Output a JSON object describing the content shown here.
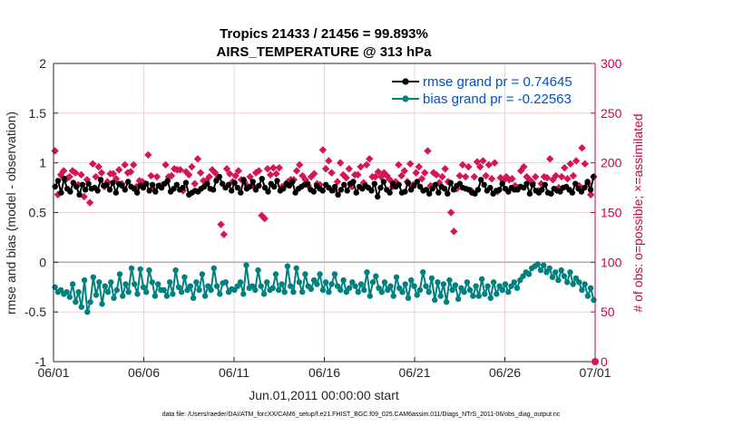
{
  "figure": {
    "title_line1": "Tropics 21433 / 21456 = 99.893%",
    "title_line2": "AIRS_TEMPERATURE @ 313 hPa",
    "footnote": "data file: /Users/raeder/DAI/ATM_forcXX/CAM6_setup/f.e21.FHIST_BGC.f09_025.CAM6assim.011/Diags_NTrS_2011-06/obs_diag_output.nc"
  },
  "colors": {
    "rmse": "#000000",
    "bias": "#00807f",
    "obs": "#d6145a",
    "right_axis": "#cc0052",
    "legend_text": "#0050c8",
    "grid": "#e7c6d6"
  },
  "chart_data": {
    "type": "line",
    "xlabel": "Jun.01,2011 00:00:00 start",
    "ylabel_left": "rmse and bias (model - observation)",
    "ylabel_right": "# of obs: o=possible; ×=assimilated",
    "x_ticks": [
      "06/01",
      "06/06",
      "06/11",
      "06/16",
      "06/21",
      "06/26",
      "07/01"
    ],
    "xlim": [
      0,
      30
    ],
    "ylim_left": [
      -1,
      2
    ],
    "y_ticks_left": [
      "-1",
      "-0.5",
      "0",
      "0.5",
      "1",
      "1.5",
      "2"
    ],
    "ylim_right": [
      0,
      300
    ],
    "y_ticks_right": [
      "0",
      "50",
      "100",
      "150",
      "200",
      "250",
      "300"
    ],
    "legend": [
      {
        "name": "rmse grand pr = 0.74645"
      },
      {
        "name": "bias grand pr = -0.22563"
      }
    ],
    "rmse": [
      0.76,
      0.82,
      0.7,
      0.84,
      0.74,
      0.71,
      0.8,
      0.76,
      0.68,
      0.78,
      0.73,
      0.79,
      0.74,
      0.75,
      0.72,
      0.83,
      0.77,
      0.78,
      0.73,
      0.8,
      0.7,
      0.79,
      0.77,
      0.73,
      0.81,
      0.76,
      0.74,
      0.7,
      0.77,
      0.75,
      0.79,
      0.72,
      0.78,
      0.71,
      0.77,
      0.75,
      0.79,
      0.82,
      0.71,
      0.74,
      0.78,
      0.73,
      0.75,
      0.8,
      0.68,
      0.7,
      0.72,
      0.71,
      0.74,
      0.76,
      0.79,
      0.74,
      0.73,
      0.82,
      0.86,
      0.79,
      0.75,
      0.78,
      0.72,
      0.8,
      0.75,
      0.7,
      0.83,
      0.74,
      0.76,
      0.81,
      0.73,
      0.77,
      0.84,
      0.75,
      0.71,
      0.79,
      0.76,
      0.82,
      0.72,
      0.74,
      0.79,
      0.77,
      0.81,
      0.7,
      0.74,
      0.76,
      0.78,
      0.79,
      0.73,
      0.71,
      0.77,
      0.74,
      0.72,
      0.78,
      0.75,
      0.72,
      0.76,
      0.68,
      0.73,
      0.78,
      0.72,
      0.79,
      0.81,
      0.7,
      0.76,
      0.74,
      0.77,
      0.75,
      0.72,
      0.79,
      0.66,
      0.75,
      0.81,
      0.73,
      0.7,
      0.79,
      0.76,
      0.78,
      0.7,
      0.71,
      0.8,
      0.73,
      0.77,
      0.81,
      0.76,
      0.72,
      0.73,
      0.69,
      0.74,
      0.78,
      0.7,
      0.76,
      0.74,
      0.69,
      0.8,
      0.73,
      0.77,
      0.79,
      0.75,
      0.74,
      0.73,
      0.7,
      0.69,
      0.73,
      0.83,
      0.78,
      0.72,
      0.75,
      0.69,
      0.72,
      0.73,
      0.79,
      0.74,
      0.71,
      0.75,
      0.73,
      0.73,
      0.76,
      0.75,
      0.79,
      0.69,
      0.78,
      0.72,
      0.7,
      0.73,
      0.78,
      0.7,
      0.69,
      0.74,
      0.72,
      0.71,
      0.75,
      0.76,
      0.73,
      0.7,
      0.79,
      0.74,
      0.71,
      0.75,
      0.81,
      0.73,
      0.86
    ],
    "bias": [
      -0.25,
      -0.3,
      -0.28,
      -0.32,
      -0.3,
      -0.35,
      -0.22,
      -0.4,
      -0.3,
      -0.45,
      -0.18,
      -0.5,
      -0.4,
      -0.15,
      -0.33,
      -0.2,
      -0.42,
      -0.24,
      -0.3,
      -0.2,
      -0.36,
      -0.28,
      -0.12,
      -0.34,
      -0.22,
      -0.3,
      -0.06,
      -0.22,
      -0.32,
      -0.07,
      -0.25,
      -0.3,
      -0.08,
      -0.2,
      -0.34,
      -0.22,
      -0.28,
      -0.28,
      -0.34,
      -0.2,
      -0.32,
      -0.08,
      -0.25,
      -0.3,
      -0.15,
      -0.28,
      -0.24,
      -0.36,
      -0.2,
      -0.28,
      -0.12,
      -0.34,
      -0.24,
      -0.28,
      -0.06,
      -0.24,
      -0.32,
      -0.21,
      -0.2,
      -0.3,
      -0.27,
      -0.28,
      -0.24,
      -0.2,
      -0.32,
      -0.03,
      -0.26,
      -0.24,
      -0.28,
      -0.08,
      -0.24,
      -0.32,
      -0.2,
      -0.28,
      -0.26,
      -0.12,
      -0.28,
      -0.22,
      -0.3,
      -0.04,
      -0.24,
      -0.3,
      -0.06,
      -0.2,
      -0.3,
      -0.12,
      -0.24,
      -0.27,
      -0.18,
      -0.22,
      -0.12,
      -0.28,
      -0.2,
      -0.3,
      -0.22,
      -0.12,
      -0.24,
      -0.28,
      -0.18,
      -0.3,
      -0.26,
      -0.2,
      -0.24,
      -0.3,
      -0.22,
      -0.28,
      -0.1,
      -0.34,
      -0.2,
      -0.14,
      -0.26,
      -0.3,
      -0.2,
      -0.28,
      -0.24,
      -0.34,
      -0.15,
      -0.26,
      -0.3,
      -0.22,
      -0.36,
      -0.18,
      -0.24,
      -0.33,
      -0.28,
      -0.1,
      -0.24,
      -0.3,
      -0.16,
      -0.38,
      -0.2,
      -0.34,
      -0.22,
      -0.4,
      -0.18,
      -0.28,
      -0.23,
      -0.37,
      -0.26,
      -0.3,
      -0.2,
      -0.28,
      -0.34,
      -0.24,
      -0.34,
      -0.17,
      -0.32,
      -0.24,
      -0.36,
      -0.2,
      -0.32,
      -0.24,
      -0.28,
      -0.22,
      -0.3,
      -0.24,
      -0.2,
      -0.26,
      -0.18,
      -0.14,
      -0.1,
      -0.12,
      -0.06,
      -0.04,
      -0.02,
      -0.08,
      -0.03,
      -0.1,
      -0.06,
      -0.15,
      -0.1,
      -0.18,
      -0.08,
      -0.14,
      -0.2,
      -0.1,
      -0.22,
      -0.16,
      -0.2,
      -0.28,
      -0.22,
      -0.34,
      -0.26,
      -0.38
    ],
    "obs_count": [
      212,
      168,
      188,
      192,
      184,
      186,
      192,
      190,
      178,
      188,
      166,
      183,
      160,
      199,
      186,
      196,
      190,
      176,
      181,
      189,
      189,
      184,
      193,
      179,
      198,
      190,
      191,
      198,
      176,
      182,
      181,
      179,
      208,
      187,
      173,
      186,
      177,
      178,
      198,
      186,
      187,
      194,
      193,
      193,
      172,
      191,
      188,
      196,
      179,
      204,
      190,
      182,
      182,
      186,
      193,
      190,
      185,
      138,
      128,
      194,
      189,
      181,
      187,
      192,
      183,
      181,
      177,
      186,
      177,
      190,
      192,
      147,
      144,
      194,
      188,
      195,
      189,
      195,
      176,
      177,
      181,
      183,
      183,
      192,
      198,
      187,
      183,
      177,
      186,
      189,
      179,
      178,
      213,
      194,
      202,
      190,
      173,
      181,
      200,
      188,
      185,
      194,
      176,
      188,
      188,
      196,
      180,
      198,
      204,
      186,
      186,
      191,
      186,
      190,
      187,
      183,
      176,
      181,
      198,
      187,
      192,
      181,
      199,
      178,
      190,
      196,
      184,
      190,
      212,
      177,
      190,
      188,
      180,
      186,
      194,
      181,
      150,
      131,
      174,
      187,
      198,
      186,
      196,
      172,
      186,
      201,
      196,
      202,
      187,
      198,
      184,
      200,
      171,
      185,
      182,
      186,
      183,
      184,
      177,
      175,
      192,
      196,
      186,
      183,
      180,
      186,
      172,
      179,
      186,
      185,
      204,
      183,
      187,
      175,
      186,
      195,
      184,
      199,
      187,
      202,
      177,
      215,
      199,
      179,
      168,
      186
    ]
  }
}
